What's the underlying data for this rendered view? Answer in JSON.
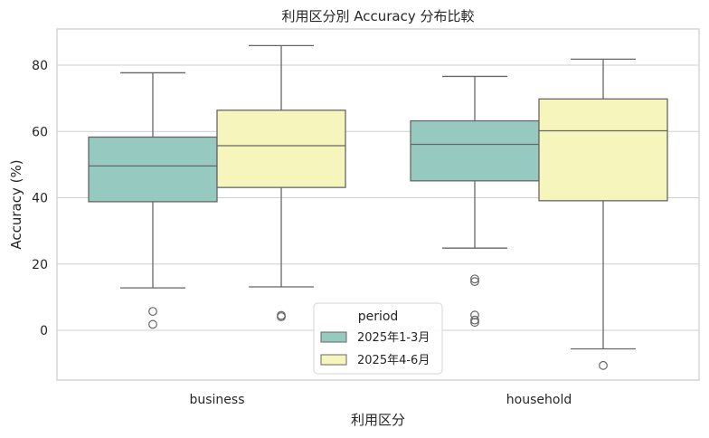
{
  "chart_data": {
    "type": "boxplot",
    "title": "利用区分別 Accuracy 分布比較",
    "xlabel": "利用区分",
    "ylabel": "Accuracy (%)",
    "categories": [
      "business",
      "household"
    ],
    "ylim": [
      -15,
      90
    ],
    "yticks": [
      0,
      20,
      40,
      60,
      80
    ],
    "grid": "y",
    "legend": {
      "title": "period",
      "placement": "lower-center"
    },
    "series": [
      {
        "name": "2025年1-3月",
        "color": "#96cac1",
        "boxes": [
          {
            "category": "business",
            "whislo": 12.8,
            "q1": 38.8,
            "med": 49.6,
            "q3": 58.3,
            "whishi": 77.7,
            "fliers": [
              5.7,
              1.8
            ]
          },
          {
            "category": "household",
            "whislo": 24.8,
            "q1": 45.1,
            "med": 56.1,
            "q3": 63.2,
            "whishi": 76.6,
            "fliers": [
              15.5,
              14.7,
              4.6,
              3.1,
              2.4
            ]
          }
        ]
      },
      {
        "name": "2025年4-6月",
        "color": "#f6f6bc",
        "boxes": [
          {
            "category": "business",
            "whislo": 13.1,
            "q1": 43.1,
            "med": 55.7,
            "q3": 66.4,
            "whishi": 85.9,
            "fliers": [
              4.5,
              4.1
            ]
          },
          {
            "category": "household",
            "whislo": -5.6,
            "q1": 39.1,
            "med": 60.2,
            "q3": 69.8,
            "whishi": 81.8,
            "fliers": [
              -10.6
            ]
          }
        ]
      }
    ]
  }
}
